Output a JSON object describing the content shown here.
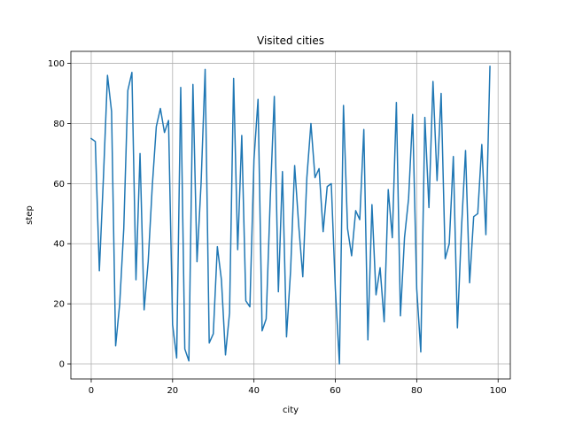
{
  "chart_data": {
    "type": "line",
    "title": "Visited cities",
    "xlabel": "city",
    "ylabel": "step",
    "xlim": [
      -5,
      103
    ],
    "ylim": [
      -5,
      104
    ],
    "xticks": [
      0,
      20,
      40,
      60,
      80,
      100
    ],
    "yticks": [
      0,
      20,
      40,
      60,
      80,
      100
    ],
    "grid": true,
    "series_color": "#1f77b4",
    "series": [
      {
        "x": [
          0,
          1,
          2,
          3,
          4,
          5,
          6,
          7,
          8,
          9,
          10,
          11,
          12,
          13,
          14,
          15,
          16,
          17,
          18,
          19,
          20,
          21,
          22,
          23,
          24,
          25,
          26,
          27,
          28,
          29,
          30,
          31,
          32,
          33,
          34,
          35,
          36,
          37,
          38,
          39,
          40,
          41,
          42,
          43,
          44,
          45,
          46,
          47,
          48,
          49,
          50,
          51,
          52,
          53,
          54,
          55,
          56,
          57,
          58,
          59,
          60,
          61,
          62,
          63,
          64,
          65,
          66,
          67,
          68,
          69,
          70,
          71,
          72,
          73,
          74,
          75,
          76,
          77,
          78,
          79,
          80,
          81,
          82,
          83,
          84,
          85,
          86,
          87,
          88,
          89,
          90,
          91,
          92,
          93,
          94,
          95,
          96,
          97,
          98
        ],
        "values": [
          75,
          74,
          31,
          62,
          96,
          84,
          6,
          20,
          45,
          91,
          97,
          28,
          70,
          18,
          34,
          59,
          79,
          85,
          77,
          81,
          13,
          2,
          92,
          5,
          1,
          93,
          34,
          60,
          98,
          7,
          10,
          39,
          28,
          3,
          17,
          95,
          38,
          76,
          21,
          19,
          68,
          88,
          11,
          15,
          55,
          89,
          24,
          64,
          9,
          31,
          66,
          46,
          29,
          62,
          80,
          62,
          65,
          44,
          59,
          60,
          25,
          0,
          86,
          45,
          36,
          51,
          48,
          78,
          8,
          53,
          23,
          32,
          14,
          58,
          42,
          87,
          16,
          42,
          55,
          83,
          25,
          4,
          82,
          52,
          94,
          61,
          90,
          35,
          40,
          69,
          12,
          45,
          71,
          27,
          49,
          50,
          73,
          43,
          99
        ]
      }
    ]
  }
}
